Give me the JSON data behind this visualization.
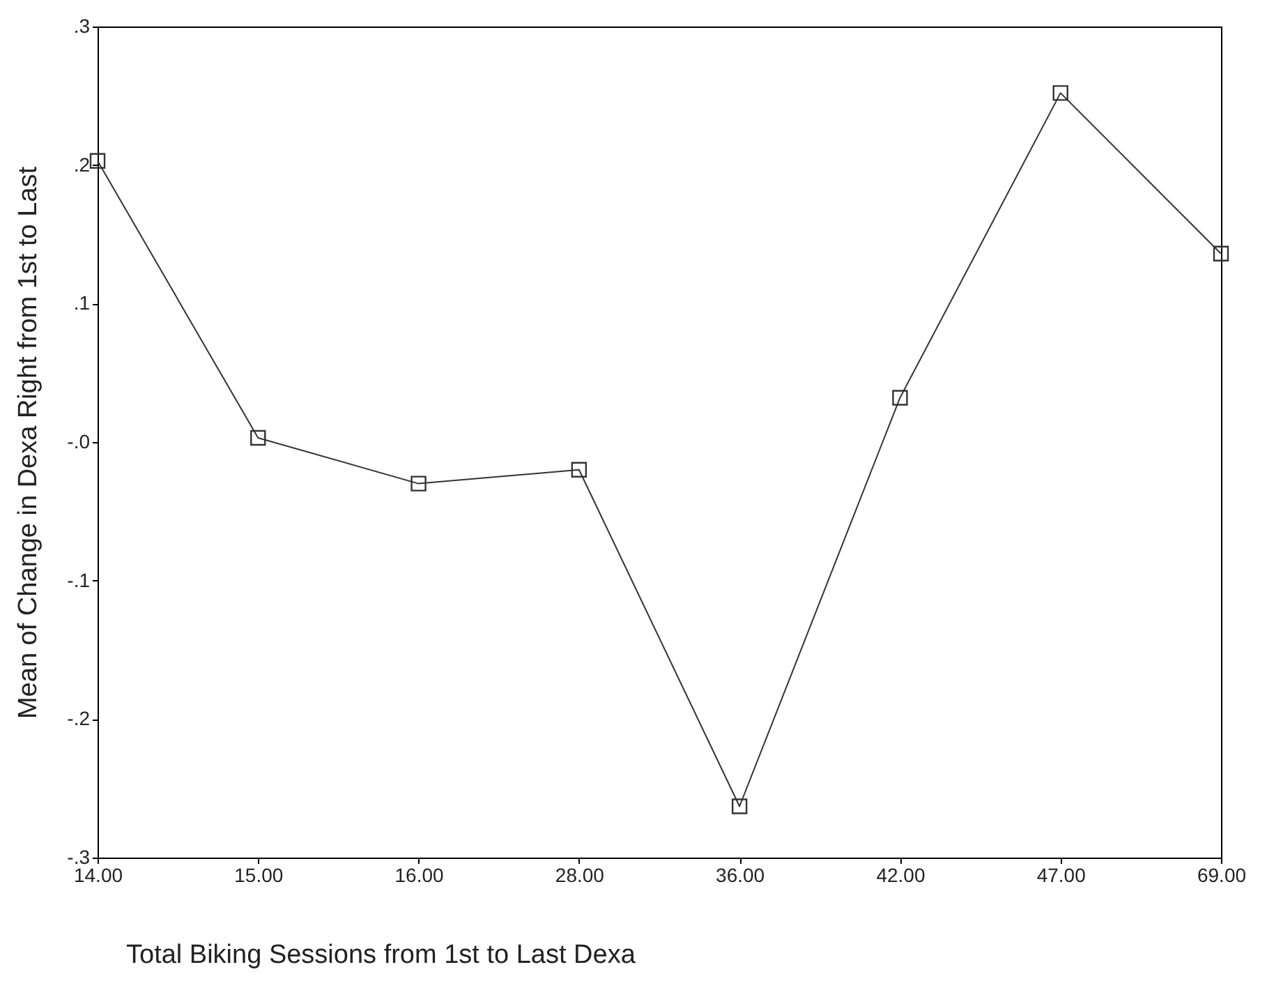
{
  "chart_data": {
    "type": "line",
    "xlabel": "Total Biking Sessions from 1st to Last Dexa",
    "ylabel": "Mean of Change in Dexa Right from 1st to Last",
    "categories": [
      "14.00",
      "15.00",
      "16.00",
      "28.00",
      "36.00",
      "42.00",
      "47.00",
      "69.00"
    ],
    "series": [
      {
        "color": "#333333",
        "values": [
          0.203,
          0.003,
          -0.03,
          -0.02,
          -0.263,
          0.032,
          0.252,
          0.136
        ]
      }
    ],
    "ylim": [
      -0.3,
      0.3
    ],
    "yticks": [
      {
        "value": -0.3,
        "label": "-.3"
      },
      {
        "value": -0.2,
        "label": "-.2"
      },
      {
        "value": -0.1,
        "label": "-.1"
      },
      {
        "value": 0,
        "label": "-.0"
      },
      {
        "value": 0.1,
        "label": ".1"
      },
      {
        "value": 0.2,
        "label": ".2"
      },
      {
        "value": 0.3,
        "label": ".3"
      }
    ],
    "marker": "square",
    "line_style": "solid",
    "grid": false,
    "legend": false
  }
}
